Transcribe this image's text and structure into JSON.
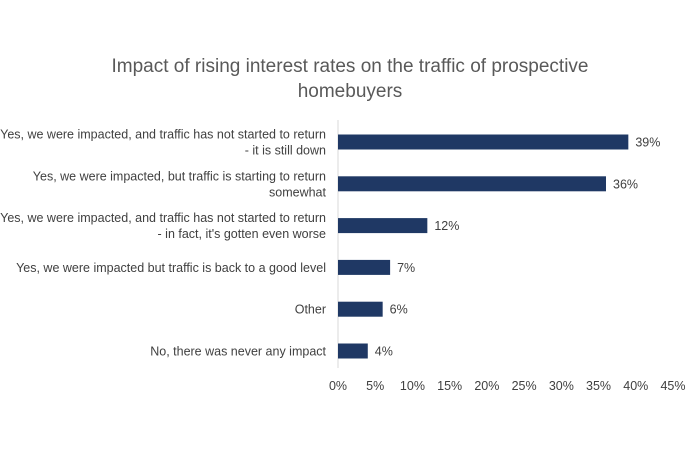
{
  "chart_data": {
    "type": "bar",
    "orientation": "horizontal",
    "title_lines": [
      "Impact of rising interest rates on the traffic of prospective",
      "homebuyers"
    ],
    "categories": [
      [
        "Yes, we were impacted, and traffic has not started to return",
        "- it is still down"
      ],
      [
        "Yes, we were impacted, but traffic is starting to return",
        "somewhat"
      ],
      [
        "Yes, we were impacted, and traffic has not started to return",
        "- in fact, it's gotten even worse"
      ],
      [
        "Yes, we were impacted but traffic is back to a good level"
      ],
      [
        "Other"
      ],
      [
        "No, there was never any impact"
      ]
    ],
    "values": [
      39,
      36,
      12,
      7,
      6,
      4
    ],
    "data_labels": [
      "39%",
      "36%",
      "12%",
      "7%",
      "6%",
      "4%"
    ],
    "xlim": [
      0,
      45
    ],
    "xticks": [
      0,
      5,
      10,
      15,
      20,
      25,
      30,
      35,
      40,
      45
    ],
    "xtick_labels": [
      "0%",
      "5%",
      "10%",
      "15%",
      "20%",
      "25%",
      "30%",
      "35%",
      "40%",
      "45%"
    ],
    "xlabel": "",
    "ylabel": "",
    "grid": false,
    "legend": "none",
    "bar_color": "#1f3864",
    "axis_color": "#d9d9d9"
  }
}
